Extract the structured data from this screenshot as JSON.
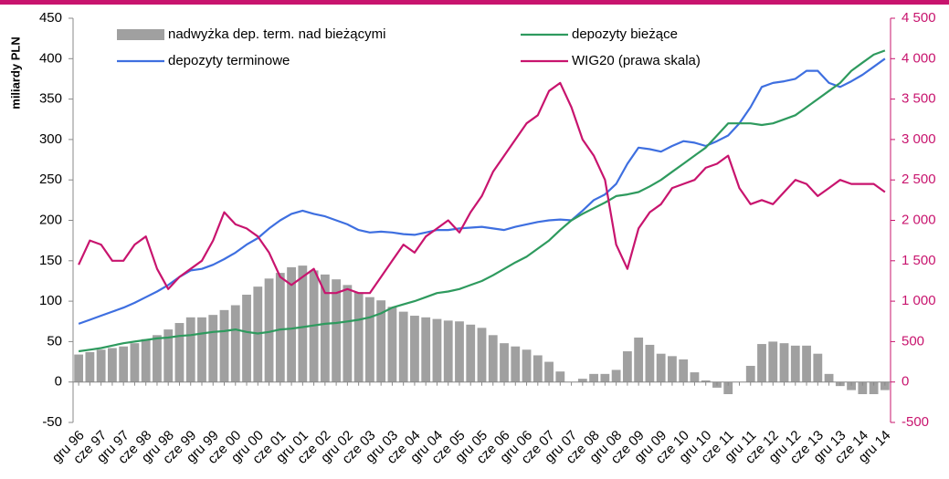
{
  "chart_data": {
    "type": "combo",
    "y_label": "miliardy PLN",
    "categories": [
      "gru 96",
      null,
      "cze 97",
      null,
      "gru 97",
      null,
      "cze 98",
      null,
      "gru 98",
      null,
      "cze 99",
      null,
      "gru 99",
      null,
      "cze 00",
      null,
      "gru 00",
      null,
      "cze 01",
      null,
      "gru 01",
      null,
      "cze 02",
      null,
      "gru 02",
      null,
      "cze 03",
      null,
      "gru 03",
      null,
      "cze 04",
      null,
      "gru 04",
      null,
      "cze 05",
      null,
      "gru 05",
      null,
      "cze 06",
      null,
      "gru 06",
      null,
      "cze 07",
      null,
      "gru 07",
      null,
      "cze 08",
      null,
      "gru 08",
      null,
      "cze 09",
      null,
      "gru 09",
      null,
      "cze 10",
      null,
      "gru 10",
      null,
      "cze 11",
      null,
      "gru 11",
      null,
      "cze 12",
      null,
      "gru 12",
      null,
      "cze 13",
      null,
      "gru 13",
      null,
      "cze 14",
      null,
      "gru 14"
    ],
    "series": [
      {
        "name": "nadwyżka dep. term. nad bieżącymi",
        "type": "bar",
        "color": "#a0a0a0",
        "values": [
          34,
          37,
          40,
          42,
          44,
          48,
          53,
          58,
          65,
          73,
          80,
          80,
          83,
          89,
          95,
          108,
          118,
          128,
          135,
          142,
          144,
          138,
          133,
          127,
          120,
          111,
          105,
          101,
          93,
          87,
          82,
          80,
          78,
          76,
          75,
          71,
          67,
          58,
          48,
          44,
          40,
          33,
          25,
          13,
          0,
          4,
          10,
          10,
          15,
          38,
          55,
          46,
          35,
          32,
          28,
          12,
          2,
          -7,
          -15,
          0,
          20,
          47,
          50,
          48,
          45,
          45,
          35,
          10,
          -5,
          -10,
          -15,
          -15,
          -10
        ]
      },
      {
        "name": "depozyty terminowe",
        "type": "line",
        "color": "#3e6fe0",
        "values": [
          72,
          77,
          82,
          87,
          92,
          98,
          105,
          112,
          120,
          130,
          138,
          140,
          145,
          152,
          160,
          170,
          178,
          190,
          200,
          208,
          212,
          208,
          205,
          200,
          195,
          188,
          185,
          186,
          185,
          183,
          182,
          185,
          188,
          188,
          190,
          191,
          192,
          190,
          188,
          192,
          195,
          198,
          200,
          201,
          200,
          212,
          225,
          232,
          245,
          270,
          290,
          288,
          285,
          292,
          298,
          296,
          292,
          298,
          305,
          320,
          340,
          365,
          370,
          372,
          375,
          385,
          385,
          370,
          365,
          372,
          380,
          390,
          400
        ]
      },
      {
        "name": "depozyty bieżące",
        "type": "line",
        "color": "#2e9a5e",
        "values": [
          38,
          40,
          42,
          45,
          48,
          50,
          52,
          54,
          55,
          57,
          58,
          60,
          62,
          63,
          65,
          62,
          60,
          62,
          65,
          66,
          68,
          70,
          72,
          73,
          75,
          77,
          80,
          85,
          92,
          96,
          100,
          105,
          110,
          112,
          115,
          120,
          125,
          132,
          140,
          148,
          155,
          165,
          175,
          188,
          200,
          208,
          215,
          222,
          230,
          232,
          235,
          242,
          250,
          260,
          270,
          280,
          290,
          305,
          320,
          320,
          320,
          318,
          320,
          325,
          330,
          340,
          350,
          360,
          370,
          385,
          395,
          405,
          410
        ]
      },
      {
        "name": "WIG20 (prawa skala)",
        "type": "line",
        "color": "#c8146e",
        "axis": "y2",
        "values": [
          1450,
          1750,
          1700,
          1500,
          1500,
          1700,
          1800,
          1400,
          1150,
          1300,
          1400,
          1500,
          1750,
          2100,
          1950,
          1900,
          1800,
          1600,
          1300,
          1200,
          1300,
          1400,
          1100,
          1100,
          1150,
          1100,
          1100,
          1300,
          1500,
          1700,
          1600,
          1800,
          1900,
          2000,
          1850,
          2100,
          2300,
          2600,
          2800,
          3000,
          3200,
          3300,
          3600,
          3700,
          3400,
          3000,
          2800,
          2500,
          1700,
          1400,
          1900,
          2100,
          2200,
          2400,
          2450,
          2500,
          2650,
          2700,
          2800,
          2400,
          2200,
          2250,
          2200,
          2350,
          2500,
          2450,
          2300,
          2400,
          2500,
          2450,
          2450,
          2450,
          2350
        ]
      }
    ],
    "ylim": [
      -50,
      450
    ],
    "yticks": [
      -50,
      0,
      50,
      100,
      150,
      200,
      250,
      300,
      350,
      400,
      450
    ],
    "y2lim": [
      -500,
      4500
    ],
    "y2ticks": [
      -500,
      0,
      500,
      {
        "value": 1000,
        "label": "1 000"
      },
      {
        "value": 1500,
        "label": "1 500"
      },
      {
        "value": 2000,
        "label": "2 000"
      },
      {
        "value": 2500,
        "label": "2 500"
      },
      {
        "value": 3000,
        "label": "3 000"
      },
      {
        "value": 3500,
        "label": "3 500"
      },
      {
        "value": 4000,
        "label": "4 000"
      },
      {
        "value": 4500,
        "label": "4 500"
      }
    ],
    "grid": false
  }
}
